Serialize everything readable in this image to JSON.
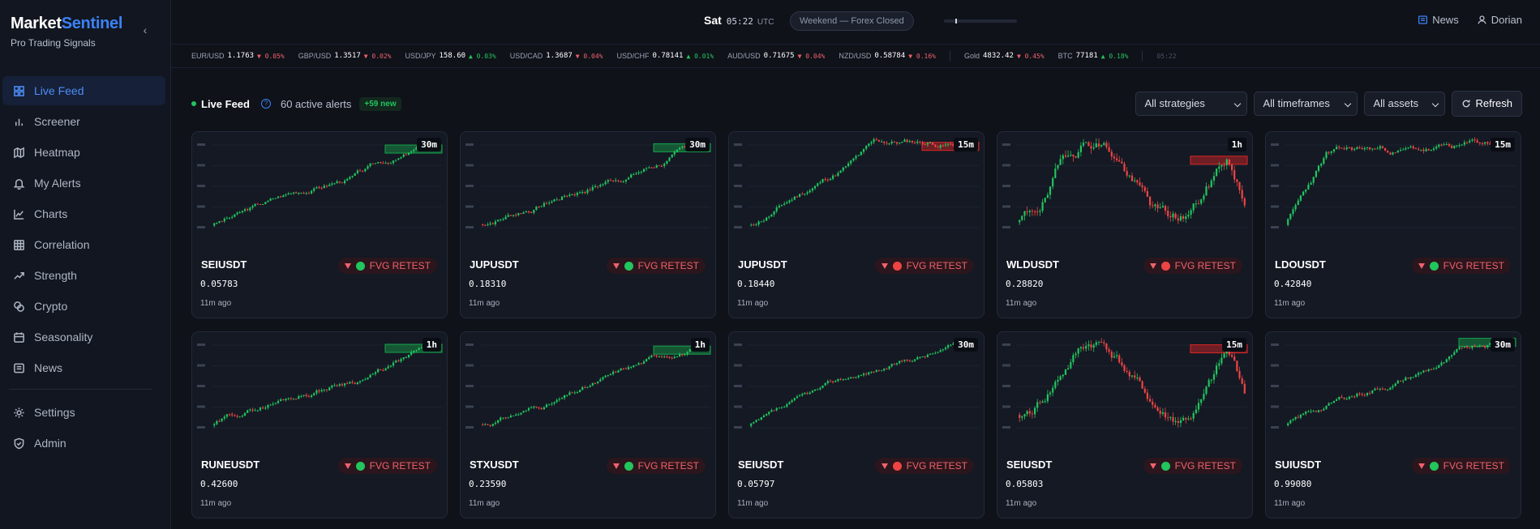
{
  "brand": {
    "name_part1": "Market",
    "name_part2": "Sentinel",
    "subtitle": "Pro Trading Signals"
  },
  "sidebar": {
    "items": [
      {
        "label": "Live Feed",
        "icon": "dashboard-icon",
        "active": true
      },
      {
        "label": "Screener",
        "icon": "bar-chart-icon"
      },
      {
        "label": "Heatmap",
        "icon": "map-icon"
      },
      {
        "label": "My Alerts",
        "icon": "bell-icon"
      },
      {
        "label": "Charts",
        "icon": "line-chart-icon"
      },
      {
        "label": "Correlation",
        "icon": "grid-icon"
      },
      {
        "label": "Strength",
        "icon": "trending-up-icon"
      },
      {
        "label": "Crypto",
        "icon": "coins-icon"
      },
      {
        "label": "Seasonality",
        "icon": "calendar-icon"
      },
      {
        "label": "News",
        "icon": "newspaper-icon"
      }
    ],
    "bottom_items": [
      {
        "label": "Settings",
        "icon": "gear-icon"
      },
      {
        "label": "Admin",
        "icon": "shield-icon"
      }
    ]
  },
  "header": {
    "day": "Sat",
    "time": "05:22",
    "tz": "UTC",
    "market_status": "Weekend — Forex Closed",
    "news_label": "News",
    "user_label": "Dorian"
  },
  "ticker": {
    "items": [
      {
        "sym": "EUR/USD",
        "price": "1.1763",
        "chg": "▼ 0.05%",
        "dir": "dn"
      },
      {
        "sym": "GBP/USD",
        "price": "1.3517",
        "chg": "▼ 0.02%",
        "dir": "dn"
      },
      {
        "sym": "USD/JPY",
        "price": "158.60",
        "chg": "▲ 0.03%",
        "dir": "up"
      },
      {
        "sym": "USD/CAD",
        "price": "1.3687",
        "chg": "▼ 0.04%",
        "dir": "dn"
      },
      {
        "sym": "USD/CHF",
        "price": "0.78141",
        "chg": "▲ 0.01%",
        "dir": "up"
      },
      {
        "sym": "AUD/USD",
        "price": "0.71675",
        "chg": "▼ 0.04%",
        "dir": "dn"
      },
      {
        "sym": "NZD/USD",
        "price": "0.58784",
        "chg": "▼ 0.16%",
        "dir": "dn"
      }
    ],
    "extra": [
      {
        "sym": "Gold",
        "price": "4832.42",
        "chg": "▼ 0.45%",
        "dir": "dn"
      },
      {
        "sym": "BTC",
        "price": "77181",
        "chg": "▲ 0.18%",
        "dir": "up"
      }
    ],
    "time": "05:22"
  },
  "feed": {
    "title": "Live Feed",
    "active_alerts": "60 active alerts",
    "new_badge": "+59 new",
    "filters": [
      "All strategies",
      "All timeframes",
      "All assets"
    ],
    "refresh_label": "Refresh"
  },
  "cards": [
    {
      "symbol": "SEIUSDT",
      "price": "0.05783",
      "time": "11m ago",
      "tf": "30m",
      "signal": "FVG RETEST",
      "dot": "#22c55e",
      "zone": "green",
      "seed": 3,
      "trend": "up"
    },
    {
      "symbol": "JUPUSDT",
      "price": "0.18310",
      "time": "11m ago",
      "tf": "30m",
      "signal": "FVG RETEST",
      "dot": "#22c55e",
      "zone": "green",
      "seed": 7,
      "trend": "up"
    },
    {
      "symbol": "JUPUSDT",
      "price": "0.18440",
      "time": "11m ago",
      "tf": "15m",
      "signal": "FVG RETEST",
      "dot": "#ef4444",
      "zone": "red",
      "seed": 11,
      "trend": "upflat"
    },
    {
      "symbol": "WLDUSDT",
      "price": "0.28820",
      "time": "11m ago",
      "tf": "1h",
      "signal": "FVG RETEST",
      "dot": "#ef4444",
      "zone": "red",
      "seed": 19,
      "trend": "wave"
    },
    {
      "symbol": "LDOUSDT",
      "price": "0.42840",
      "time": "11m ago",
      "tf": "15m",
      "signal": "FVG RETEST",
      "dot": "#22c55e",
      "zone": "none",
      "seed": 23,
      "trend": "spike"
    },
    {
      "symbol": "RUNEUSDT",
      "price": "0.42600",
      "time": "11m ago",
      "tf": "1h",
      "signal": "FVG RETEST",
      "dot": "#22c55e",
      "zone": "green",
      "seed": 29,
      "trend": "up"
    },
    {
      "symbol": "STXUSDT",
      "price": "0.23590",
      "time": "11m ago",
      "tf": "1h",
      "signal": "FVG RETEST",
      "dot": "#22c55e",
      "zone": "green",
      "seed": 31,
      "trend": "up"
    },
    {
      "symbol": "SEIUSDT",
      "price": "0.05797",
      "time": "11m ago",
      "tf": "30m",
      "signal": "FVG RETEST",
      "dot": "#ef4444",
      "zone": "none",
      "seed": 37,
      "trend": "up"
    },
    {
      "symbol": "SEIUSDT",
      "price": "0.05803",
      "time": "11m ago",
      "tf": "15m",
      "signal": "FVG RETEST",
      "dot": "#22c55e",
      "zone": "red",
      "seed": 41,
      "trend": "wave"
    },
    {
      "symbol": "SUIUSDT",
      "price": "0.99080",
      "time": "11m ago",
      "tf": "30m",
      "signal": "FVG RETEST",
      "dot": "#22c55e",
      "zone": "green",
      "seed": 43,
      "trend": "up"
    }
  ],
  "colors": {
    "accent": "#3b82f6",
    "up": "#22c55e",
    "down": "#ef4444"
  }
}
